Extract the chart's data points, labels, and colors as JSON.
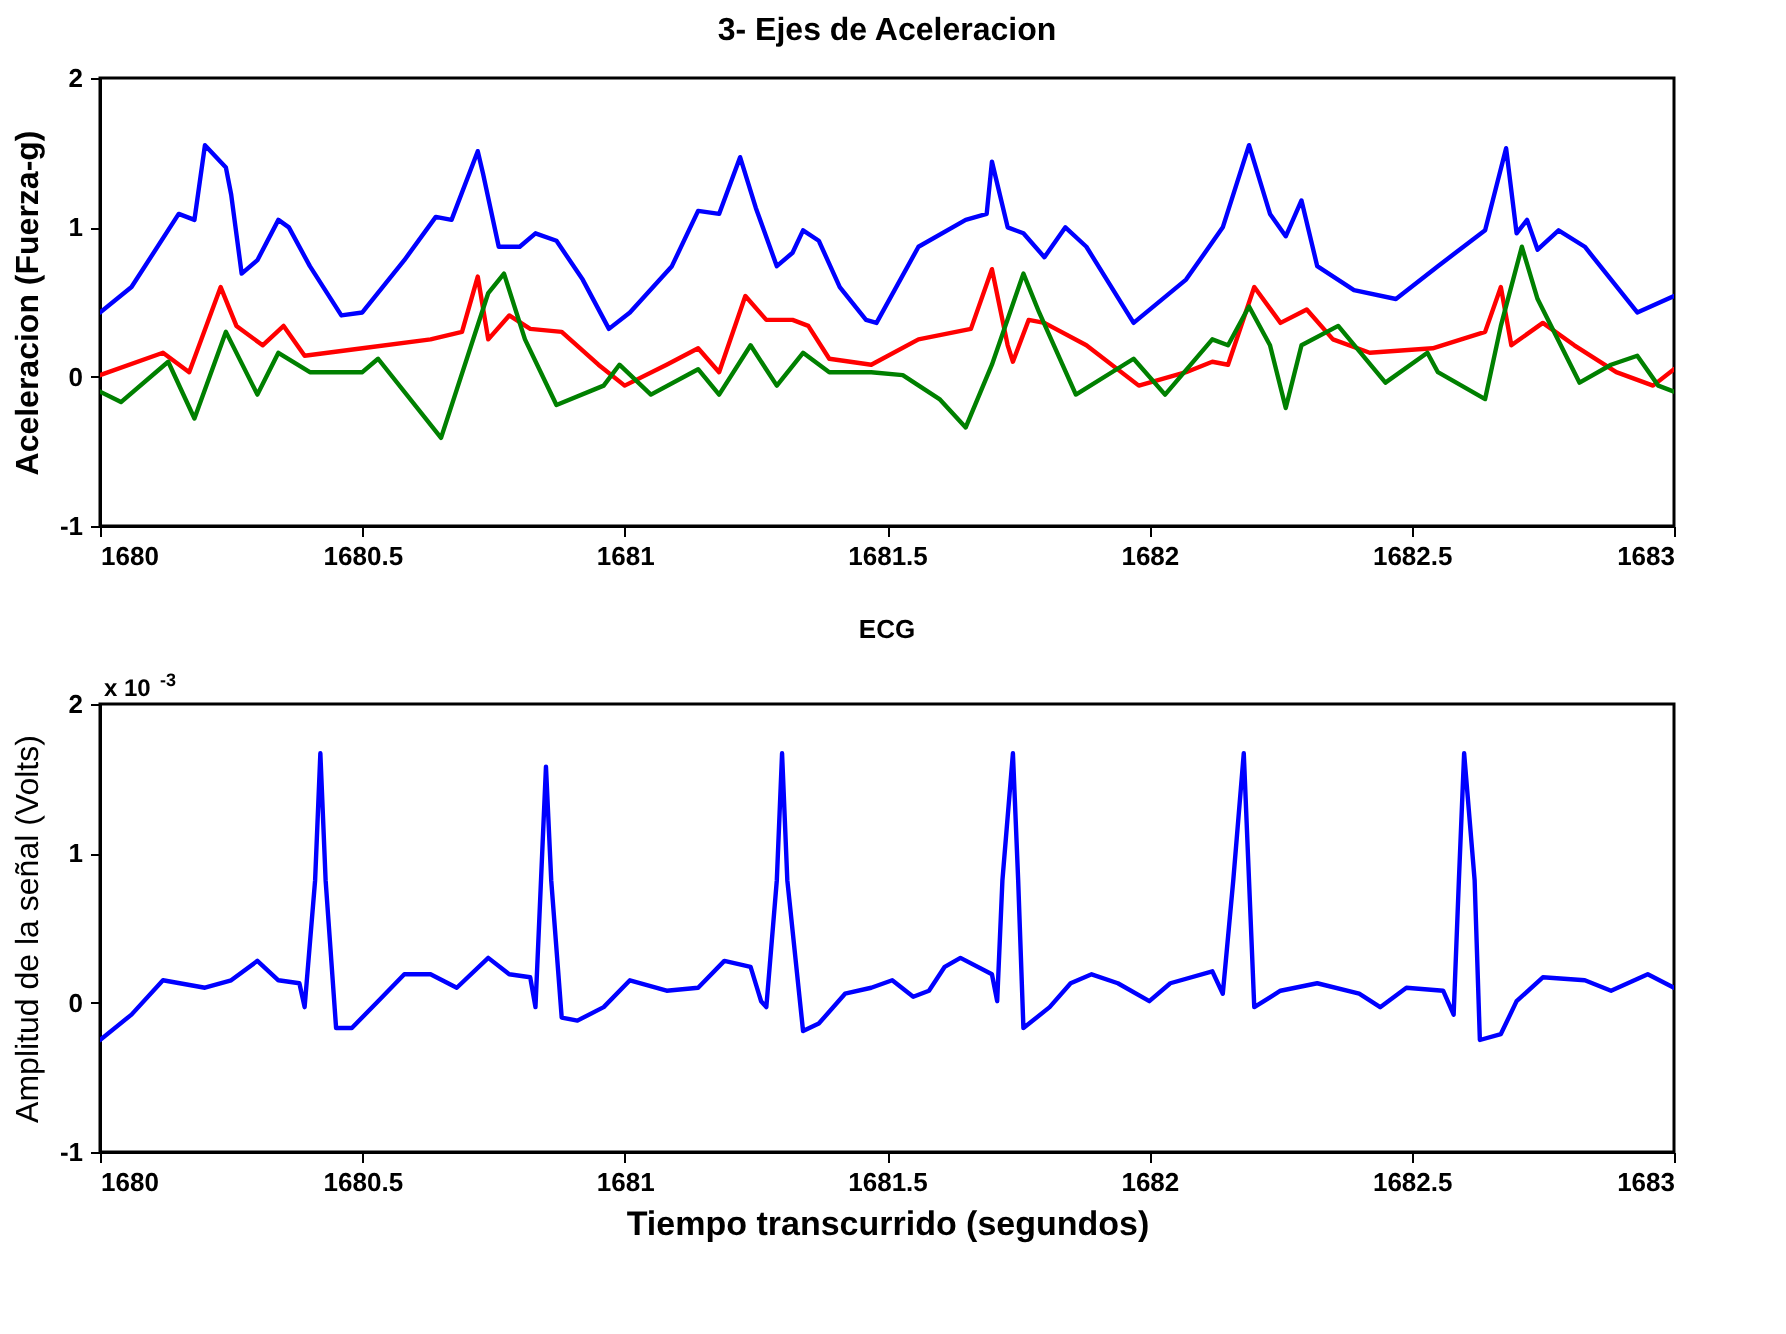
{
  "chart_data": [
    {
      "type": "line",
      "title": "3- Ejes de Aceleracion",
      "ylabel": "Aceleracion (Fuerza-g)",
      "xlim": [
        1680,
        1683
      ],
      "xticks": [
        1680,
        1680.5,
        1681,
        1681.5,
        1682,
        1682.5,
        1683
      ],
      "ylim": [
        -1,
        2
      ],
      "yticks": [
        -1,
        0,
        1,
        2
      ],
      "grid": false,
      "legend": false,
      "series": [
        {
          "color": "#0000ff",
          "x": [
            1680.0,
            1680.06,
            1680.15,
            1680.18,
            1680.2,
            1680.24,
            1680.25,
            1680.27,
            1680.3,
            1680.34,
            1680.36,
            1680.4,
            1680.46,
            1680.5,
            1680.58,
            1680.64,
            1680.67,
            1680.72,
            1680.73,
            1680.76,
            1680.8,
            1680.83,
            1680.87,
            1680.92,
            1680.97,
            1681.01,
            1681.09,
            1681.14,
            1681.18,
            1681.22,
            1681.25,
            1681.29,
            1681.32,
            1681.34,
            1681.37,
            1681.41,
            1681.46,
            1681.48,
            1681.56,
            1681.65,
            1681.69,
            1681.7,
            1681.73,
            1681.76,
            1681.8,
            1681.84,
            1681.88,
            1681.97,
            1682.07,
            1682.14,
            1682.19,
            1682.23,
            1682.26,
            1682.29,
            1682.32,
            1682.39,
            1682.47,
            1682.55,
            1682.64,
            1682.68,
            1682.7,
            1682.72,
            1682.74,
            1682.78,
            1682.83,
            1682.93,
            1683.0
          ],
          "values": [
            0.43,
            0.6,
            1.09,
            1.05,
            1.55,
            1.4,
            1.22,
            0.69,
            0.78,
            1.05,
            1.0,
            0.74,
            0.41,
            0.43,
            0.78,
            1.07,
            1.05,
            1.51,
            1.36,
            0.87,
            0.87,
            0.96,
            0.91,
            0.65,
            0.32,
            0.43,
            0.74,
            1.11,
            1.09,
            1.47,
            1.13,
            0.74,
            0.83,
            0.98,
            0.91,
            0.6,
            0.38,
            0.36,
            0.87,
            1.05,
            1.09,
            1.44,
            1.0,
            0.96,
            0.8,
            1.0,
            0.87,
            0.36,
            0.65,
            1.0,
            1.55,
            1.09,
            0.94,
            1.18,
            0.74,
            0.58,
            0.52,
            0.74,
            0.98,
            1.53,
            0.96,
            1.05,
            0.85,
            0.98,
            0.87,
            0.43,
            0.54
          ]
        },
        {
          "color": "#ff0000",
          "x": [
            1680.0,
            1680.12,
            1680.17,
            1680.23,
            1680.26,
            1680.31,
            1680.35,
            1680.39,
            1680.5,
            1680.63,
            1680.69,
            1680.72,
            1680.74,
            1680.78,
            1680.82,
            1680.88,
            1680.95,
            1681.0,
            1681.08,
            1681.14,
            1681.18,
            1681.23,
            1681.27,
            1681.32,
            1681.35,
            1681.39,
            1681.47,
            1681.56,
            1681.66,
            1681.7,
            1681.73,
            1681.74,
            1681.77,
            1681.8,
            1681.88,
            1681.98,
            1682.07,
            1682.12,
            1682.15,
            1682.2,
            1682.25,
            1682.3,
            1682.35,
            1682.42,
            1682.54,
            1682.64,
            1682.67,
            1682.69,
            1682.75,
            1682.81,
            1682.89,
            1682.96,
            1683.0
          ],
          "values": [
            0.01,
            0.16,
            0.03,
            0.6,
            0.34,
            0.21,
            0.34,
            0.14,
            0.19,
            0.25,
            0.3,
            0.67,
            0.25,
            0.41,
            0.32,
            0.3,
            0.08,
            -0.06,
            0.08,
            0.19,
            0.03,
            0.54,
            0.38,
            0.38,
            0.34,
            0.12,
            0.08,
            0.25,
            0.32,
            0.72,
            0.21,
            0.1,
            0.38,
            0.36,
            0.21,
            -0.06,
            0.03,
            0.1,
            0.08,
            0.6,
            0.36,
            0.45,
            0.25,
            0.16,
            0.19,
            0.3,
            0.6,
            0.21,
            0.36,
            0.21,
            0.03,
            -0.06,
            0.05
          ]
        },
        {
          "color": "#008000",
          "x": [
            1680.0,
            1680.04,
            1680.13,
            1680.18,
            1680.24,
            1680.3,
            1680.34,
            1680.4,
            1680.5,
            1680.53,
            1680.65,
            1680.74,
            1680.77,
            1680.81,
            1680.87,
            1680.96,
            1680.99,
            1681.05,
            1681.14,
            1681.18,
            1681.24,
            1681.29,
            1681.34,
            1681.39,
            1681.47,
            1681.53,
            1681.6,
            1681.65,
            1681.7,
            1681.76,
            1681.79,
            1681.86,
            1681.97,
            1682.03,
            1682.12,
            1682.15,
            1682.19,
            1682.23,
            1682.26,
            1682.29,
            1682.36,
            1682.45,
            1682.53,
            1682.55,
            1682.64,
            1682.67,
            1682.71,
            1682.74,
            1682.82,
            1682.88,
            1682.93,
            1682.97,
            1683.0
          ],
          "values": [
            -0.1,
            -0.17,
            0.1,
            -0.28,
            0.3,
            -0.12,
            0.16,
            0.03,
            0.03,
            0.12,
            -0.41,
            0.56,
            0.69,
            0.25,
            -0.19,
            -0.06,
            0.08,
            -0.12,
            0.05,
            -0.12,
            0.21,
            -0.06,
            0.16,
            0.03,
            0.03,
            0.01,
            -0.15,
            -0.34,
            0.08,
            0.69,
            0.43,
            -0.12,
            0.12,
            -0.12,
            0.25,
            0.21,
            0.47,
            0.21,
            -0.21,
            0.21,
            0.34,
            -0.04,
            0.16,
            0.03,
            -0.15,
            0.34,
            0.87,
            0.52,
            -0.04,
            0.08,
            0.14,
            -0.06,
            -0.1
          ]
        }
      ]
    },
    {
      "type": "line",
      "title": "ECG",
      "xlabel": "Tiempo transcurrido (segundos)",
      "ylabel": "Amplitud de la señal (Volts)",
      "annotations": [
        "x 10$^{-3}$"
      ],
      "xlim": [
        1680,
        1683
      ],
      "xticks": [
        1680,
        1680.5,
        1681,
        1681.5,
        1682,
        1682.5,
        1683
      ],
      "ylim": [
        -1,
        2
      ],
      "yticks": [
        -1,
        0,
        1,
        2
      ],
      "grid": false,
      "legend": false,
      "series": [
        {
          "color": "#0000ff",
          "x": [
            1680.0,
            1680.06,
            1680.12,
            1680.2,
            1680.25,
            1680.3,
            1680.34,
            1680.38,
            1680.39,
            1680.41,
            1680.42,
            1680.43,
            1680.45,
            1680.48,
            1680.53,
            1680.58,
            1680.63,
            1680.68,
            1680.74,
            1680.78,
            1680.82,
            1680.83,
            1680.85,
            1680.86,
            1680.88,
            1680.91,
            1680.96,
            1681.01,
            1681.08,
            1681.14,
            1681.19,
            1681.24,
            1681.26,
            1681.27,
            1681.29,
            1681.3,
            1681.31,
            1681.34,
            1681.37,
            1681.42,
            1681.47,
            1681.51,
            1681.55,
            1681.58,
            1681.61,
            1681.64,
            1681.7,
            1681.71,
            1681.72,
            1681.74,
            1681.75,
            1681.76,
            1681.81,
            1681.85,
            1681.89,
            1681.94,
            1682.0,
            1682.04,
            1682.12,
            1682.14,
            1682.16,
            1682.18,
            1682.19,
            1682.2,
            1682.25,
            1682.32,
            1682.4,
            1682.44,
            1682.49,
            1682.56,
            1682.58,
            1682.59,
            1682.6,
            1682.62,
            1682.63,
            1682.67,
            1682.7,
            1682.75,
            1682.83,
            1682.88,
            1682.95,
            1683.0
          ],
          "values": [
            -0.25,
            -0.08,
            0.15,
            0.1,
            0.15,
            0.28,
            0.15,
            0.13,
            -0.03,
            0.82,
            1.67,
            0.82,
            -0.17,
            -0.17,
            0.01,
            0.19,
            0.19,
            0.1,
            0.3,
            0.19,
            0.17,
            -0.03,
            1.58,
            0.82,
            -0.1,
            -0.12,
            -0.03,
            0.15,
            0.08,
            0.1,
            0.28,
            0.24,
            0.01,
            -0.03,
            0.82,
            1.67,
            0.82,
            -0.19,
            -0.14,
            0.06,
            0.1,
            0.15,
            0.04,
            0.08,
            0.24,
            0.3,
            0.19,
            0.01,
            0.82,
            1.67,
            0.82,
            -0.17,
            -0.03,
            0.13,
            0.19,
            0.13,
            0.01,
            0.13,
            0.21,
            0.06,
            0.82,
            1.67,
            0.82,
            -0.03,
            0.08,
            0.13,
            0.06,
            -0.03,
            0.1,
            0.08,
            -0.08,
            0.82,
            1.67,
            0.82,
            -0.25,
            -0.21,
            0.01,
            0.17,
            0.15,
            0.08,
            0.19,
            0.1
          ]
        }
      ]
    }
  ]
}
